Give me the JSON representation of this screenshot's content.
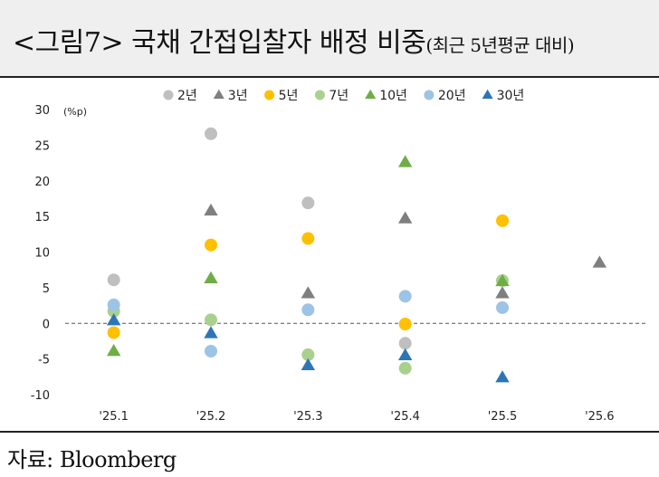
{
  "title": {
    "main": "<그림7> 국채 간접입찰자 배정 비중",
    "sub": "(최근 5년평균 대비)"
  },
  "source": "자료: Bloomberg",
  "chart_data": {
    "type": "scatter",
    "unit_label": "(%p)",
    "categories": [
      "'25.1",
      "'25.2",
      "'25.3",
      "'25.4",
      "'25.5",
      "'25.6"
    ],
    "ylim": [
      -10,
      30
    ],
    "yticks": [
      30,
      25,
      20,
      15,
      10,
      5,
      0,
      -5,
      -10
    ],
    "grid": false,
    "zero_line": "dashed",
    "legend_position": "top",
    "series": [
      {
        "name": "2년",
        "marker": "circle",
        "color": "#bfbfbf",
        "values": [
          6.1,
          26.6,
          16.9,
          -2.8,
          null,
          null
        ]
      },
      {
        "name": "3년",
        "marker": "triangle",
        "color": "#7f7f7f",
        "values": [
          null,
          15.8,
          4.2,
          14.7,
          4.2,
          8.5
        ]
      },
      {
        "name": "5년",
        "marker": "circle",
        "color": "#ffc000",
        "values": [
          -1.3,
          11.0,
          11.9,
          -0.1,
          14.4,
          null
        ]
      },
      {
        "name": "7년",
        "marker": "circle",
        "color": "#a9d18e",
        "values": [
          1.7,
          0.5,
          -4.4,
          -6.3,
          6.0,
          null
        ]
      },
      {
        "name": "10년",
        "marker": "triangle",
        "color": "#70ad47",
        "values": [
          -3.9,
          6.3,
          null,
          22.6,
          5.9,
          null
        ]
      },
      {
        "name": "20년",
        "marker": "circle",
        "color": "#9dc3e6",
        "values": [
          2.6,
          -3.9,
          1.9,
          3.8,
          2.2,
          null
        ]
      },
      {
        "name": "30년",
        "marker": "triangle",
        "color": "#2e75b6",
        "values": [
          0.4,
          -1.4,
          -5.9,
          -4.5,
          -7.6,
          null
        ]
      }
    ]
  }
}
